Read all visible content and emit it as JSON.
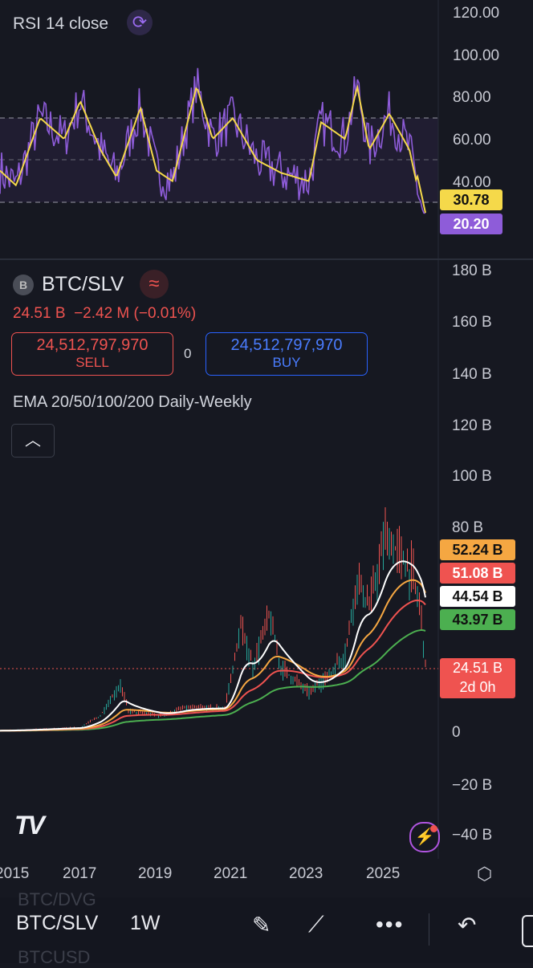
{
  "rsi_pane": {
    "title": "RSI 14 close",
    "axis_ticks": [
      "120.00",
      "100.00",
      "80.00",
      "60.00",
      "40.00"
    ],
    "ma_value": "30.78",
    "rsi_value": "20.20",
    "ma_color": "#f5d94a",
    "rsi_color": "#8e5cd9"
  },
  "price_pane": {
    "symbol": "BTC/SLV",
    "symbol_badge": "B",
    "price": "24.51 B",
    "change": "−2.42 M (−0.01%)",
    "sell_value": "24,512,797,970",
    "sell_label": "SELL",
    "buy_value": "24,512,797,970",
    "buy_label": "BUY",
    "spread": "0",
    "indicator": "EMA 20/50/100/200 Daily-Weekly",
    "axis_ticks": [
      "180 B",
      "160 B",
      "140 B",
      "120 B",
      "100 B",
      "80 B",
      "0",
      "−20 B",
      "−40 B"
    ],
    "ema_tags": [
      {
        "value": "52.24 B",
        "color": "#f5a742"
      },
      {
        "value": "51.08 B",
        "color": "#ef5350"
      },
      {
        "value": "44.54 B",
        "color": "#ffffff"
      },
      {
        "value": "43.97 B",
        "color": "#4caf50"
      }
    ],
    "last_price_tag": "24.51 B",
    "countdown": "2d 0h",
    "logo": "TV"
  },
  "time_axis": [
    "2015",
    "2017",
    "2019",
    "2021",
    "2023",
    "2025"
  ],
  "bottom_bar": {
    "symbol": "BTC/SLV",
    "interval": "1W",
    "ghost_above": "BTC/DVG",
    "ghost_below": "BTCUSD"
  }
}
